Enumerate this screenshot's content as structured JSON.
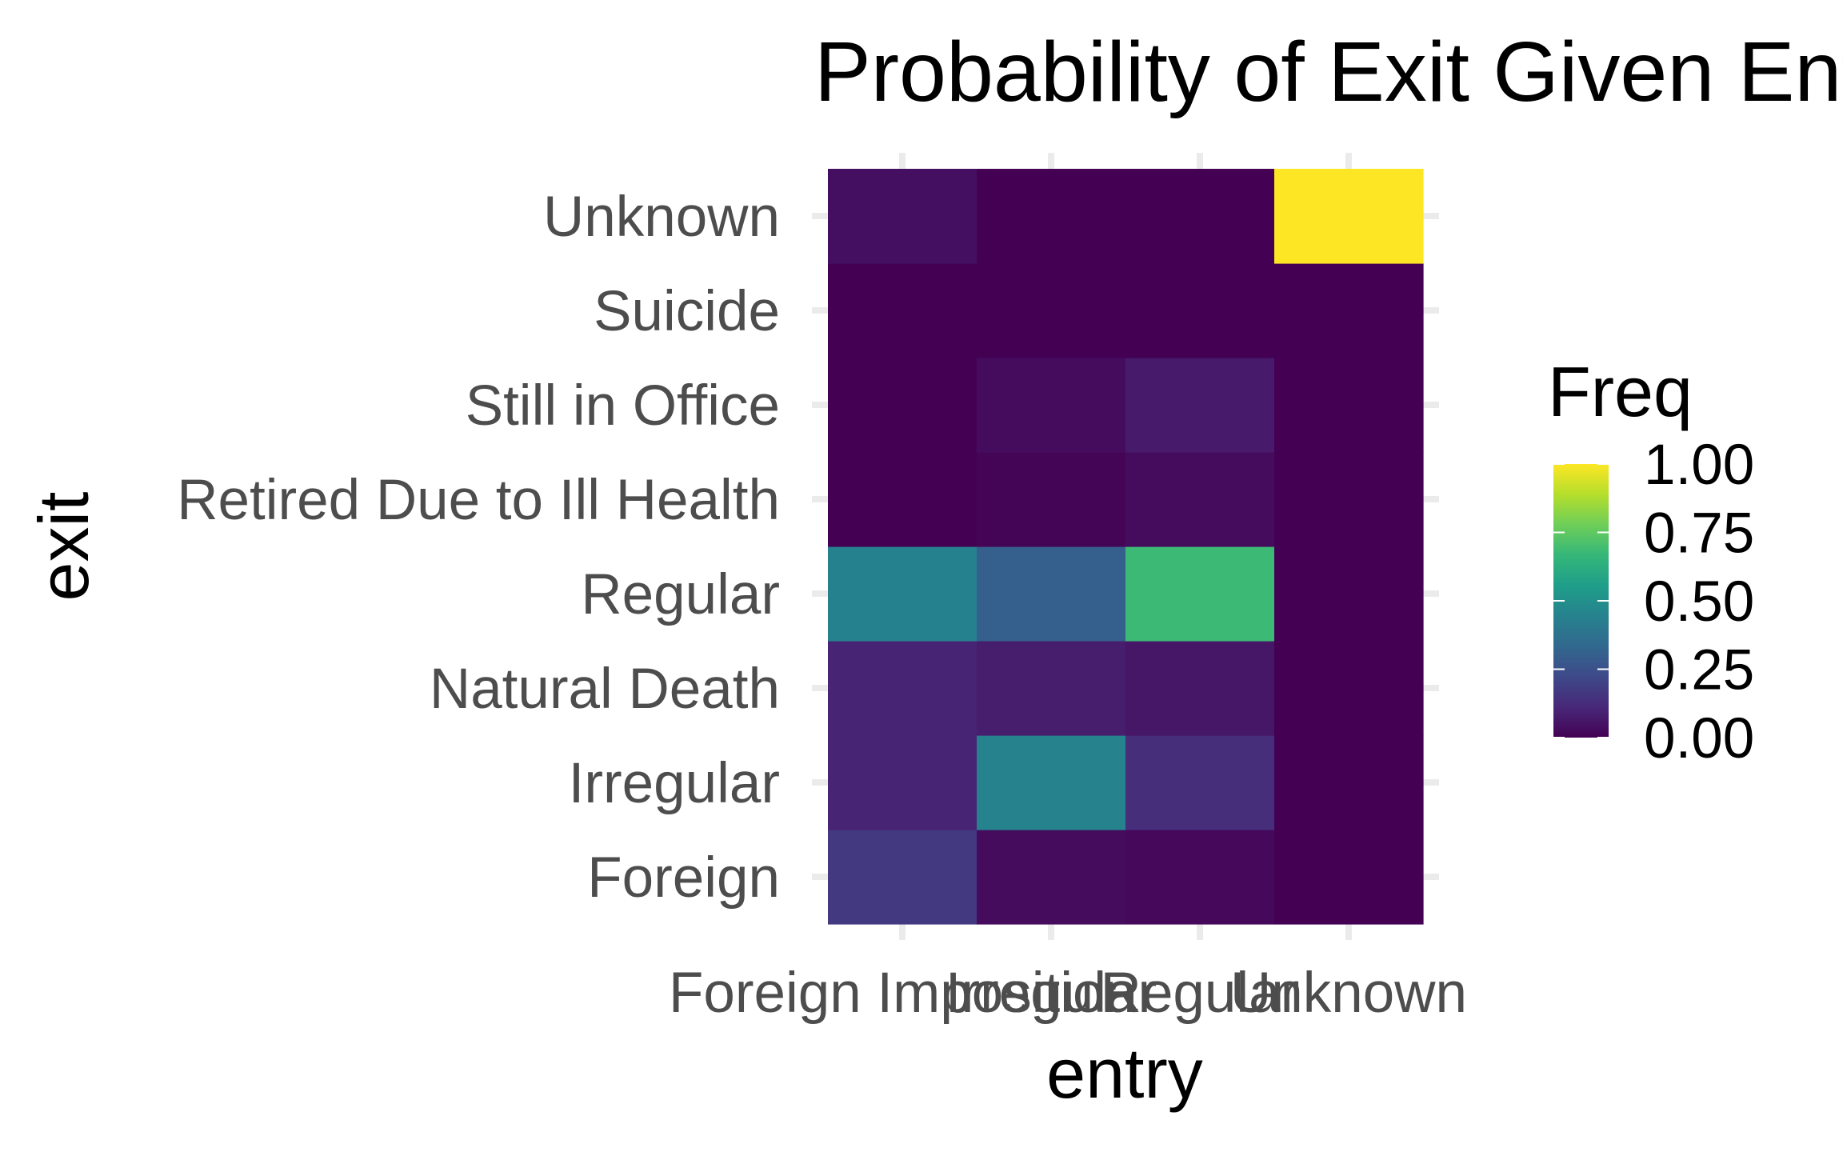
{
  "chart_data": {
    "type": "heatmap",
    "title": "Probability of Exit Given Entry",
    "xlabel": "entry",
    "ylabel": "exit",
    "x_categories": [
      "Foreign Imposition",
      "Irregular",
      "Regular",
      "Unknown"
    ],
    "y_categories": [
      "Foreign",
      "Irregular",
      "Natural Death",
      "Regular",
      "Retired Due to Ill Health",
      "Still in Office",
      "Suicide",
      "Unknown"
    ],
    "values": [
      [
        0.17,
        0.1,
        0.1,
        0.44,
        0.0,
        0.0,
        0.0,
        0.04
      ],
      [
        0.03,
        0.45,
        0.08,
        0.3,
        0.01,
        0.03,
        0.0,
        0.0
      ],
      [
        0.02,
        0.13,
        0.06,
        0.68,
        0.03,
        0.07,
        0.0,
        0.0
      ],
      [
        0.0,
        0.0,
        0.0,
        0.0,
        0.0,
        0.0,
        0.0,
        1.0
      ]
    ],
    "legend": {
      "title": "Freq",
      "placement": "right",
      "ticks": [
        "0.00",
        "0.25",
        "0.50",
        "0.75",
        "1.00"
      ],
      "range": [
        0,
        1
      ]
    },
    "colormap": [
      "#440154",
      "#482878",
      "#3e4989",
      "#31688e",
      "#26828e",
      "#1f9e89",
      "#35b779",
      "#6ece58",
      "#b5de2b",
      "#fde725"
    ],
    "grid": true
  }
}
